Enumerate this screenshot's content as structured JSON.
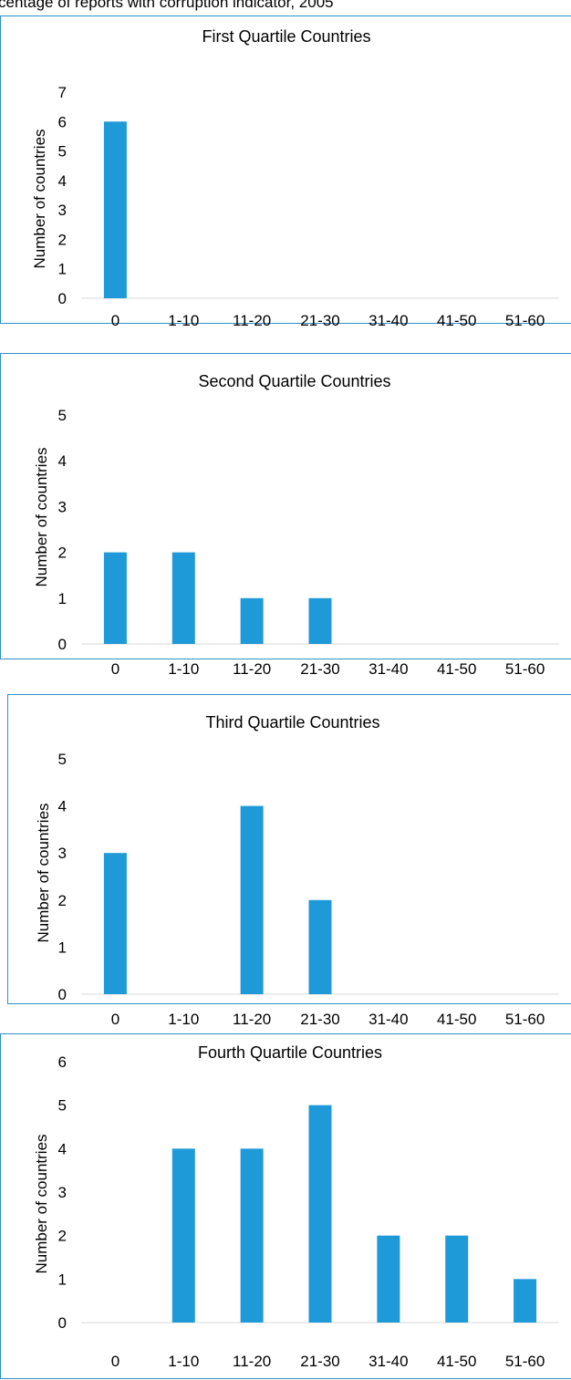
{
  "figure_title": "centage of reports with corruption indicator, 2005",
  "colors": {
    "bar": "#1f9ad8",
    "border": "#2f8fca",
    "title": "#1f9ad8",
    "axis": "#d9d9d9"
  },
  "chart_data": [
    {
      "type": "bar",
      "title": "First Quartile Countries",
      "xlabel": "",
      "ylabel": "Number of countries",
      "categories": [
        "0",
        "1-10",
        "11-20",
        "21-30",
        "31-40",
        "41-50",
        "51-60"
      ],
      "values": [
        6,
        0,
        0,
        0,
        0,
        0,
        0
      ],
      "ylim": [
        0,
        7
      ],
      "yticks": [
        "0",
        "1",
        "2",
        "3",
        "4",
        "5",
        "6",
        "7"
      ],
      "grid": false,
      "legend": "none"
    },
    {
      "type": "bar",
      "title": "Second Quartile Countries",
      "xlabel": "",
      "ylabel": "Number of countries",
      "categories": [
        "0",
        "1-10",
        "11-20",
        "21-30",
        "31-40",
        "41-50",
        "51-60"
      ],
      "values": [
        2,
        2,
        1,
        1,
        0,
        0,
        0
      ],
      "ylim": [
        0,
        5
      ],
      "yticks": [
        "0",
        "1",
        "2",
        "3",
        "4",
        "5"
      ],
      "grid": false,
      "legend": "none"
    },
    {
      "type": "bar",
      "title": "Third Quartile Countries",
      "xlabel": "",
      "ylabel": "Number of countries",
      "categories": [
        "0",
        "1-10",
        "11-20",
        "21-30",
        "31-40",
        "41-50",
        "51-60"
      ],
      "values": [
        3,
        0,
        4,
        2,
        0,
        0,
        0
      ],
      "ylim": [
        0,
        5
      ],
      "yticks": [
        "0",
        "1",
        "2",
        "3",
        "4",
        "5"
      ],
      "grid": false,
      "legend": "none"
    },
    {
      "type": "bar",
      "title": "Fourth Quartile Countries",
      "xlabel": "",
      "ylabel": "Number of countries",
      "categories": [
        "0",
        "1-10",
        "11-20",
        "21-30",
        "31-40",
        "41-50",
        "51-60"
      ],
      "values": [
        0,
        4,
        4,
        5,
        2,
        2,
        1
      ],
      "ylim": [
        0,
        6
      ],
      "yticks": [
        "0",
        "1",
        "2",
        "3",
        "4",
        "5",
        "6"
      ],
      "grid": false,
      "legend": "none"
    }
  ]
}
